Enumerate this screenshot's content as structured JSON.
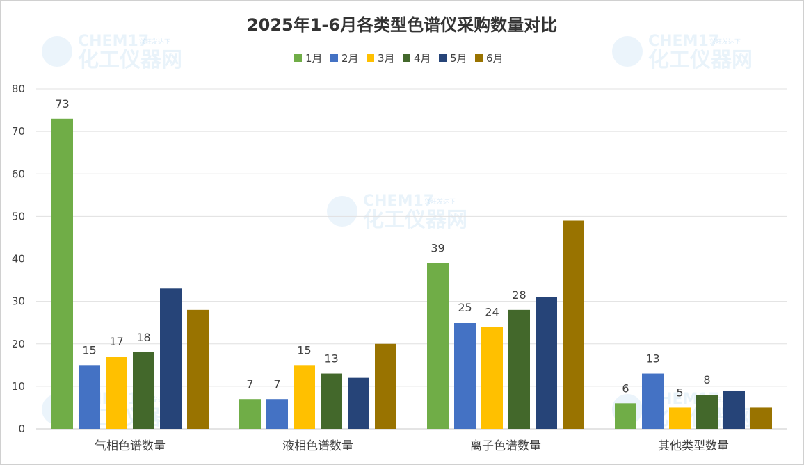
{
  "chart_data": {
    "type": "bar",
    "title": "2025年1-6月各类型色谱仪采购数量对比",
    "categories": [
      "气相色谱数量",
      "液相色谱数量",
      "离子色谱数量",
      "其他类型数量"
    ],
    "series": [
      {
        "name": "1月",
        "color": "#70ad47",
        "values": [
          73,
          7,
          39,
          6
        ]
      },
      {
        "name": "2月",
        "color": "#4472c4",
        "values": [
          15,
          7,
          25,
          13
        ]
      },
      {
        "name": "3月",
        "color": "#ffc000",
        "values": [
          17,
          15,
          24,
          5
        ]
      },
      {
        "name": "4月",
        "color": "#43682b",
        "values": [
          18,
          13,
          28,
          8
        ]
      },
      {
        "name": "5月",
        "color": "#264478",
        "values": [
          33,
          12,
          31,
          9
        ]
      },
      {
        "name": "6月",
        "color": "#997300",
        "values": [
          28,
          20,
          49,
          5
        ]
      }
    ],
    "data_labels": [
      [
        true,
        true,
        true,
        true,
        false,
        false
      ],
      [
        true,
        true,
        true,
        true,
        false,
        false
      ],
      [
        true,
        true,
        true,
        true,
        false,
        false
      ],
      [
        true,
        true,
        true,
        true,
        false,
        false
      ]
    ],
    "ylim": [
      0,
      80
    ],
    "yticks": [
      0,
      10,
      20,
      30,
      40,
      50,
      60,
      70,
      80
    ],
    "grid": true,
    "legend_position": "top",
    "xlabel": "",
    "ylabel": ""
  },
  "watermark": {
    "en": "CHEM17",
    "cn": "化工仪器网",
    "slogan": "兴旺发达下"
  }
}
